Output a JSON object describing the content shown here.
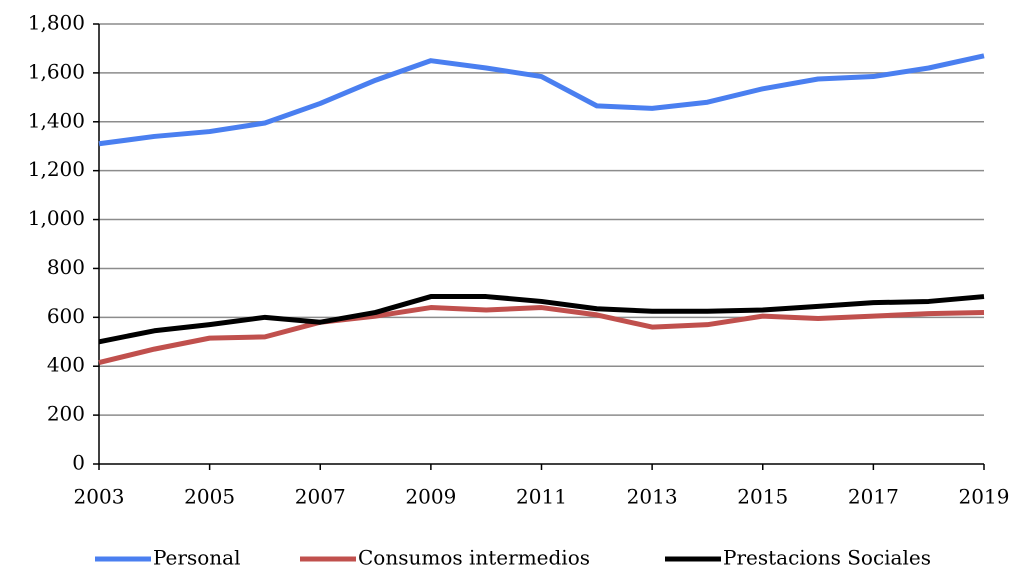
{
  "chart_data": {
    "type": "line",
    "x": [
      2003,
      2004,
      2005,
      2006,
      2007,
      2008,
      2009,
      2010,
      2011,
      2012,
      2013,
      2014,
      2015,
      2016,
      2017,
      2018,
      2019
    ],
    "xlim": [
      2003,
      2019
    ],
    "xticks": [
      2003,
      2005,
      2007,
      2009,
      2011,
      2013,
      2015,
      2017,
      2019
    ],
    "ylim": [
      0,
      1800
    ],
    "yticks": [
      0,
      200,
      400,
      600,
      800,
      {
        "value": 1000,
        "label": "1,000"
      },
      {
        "value": 1200,
        "label": "1,200"
      },
      {
        "value": 1400,
        "label": "1,400"
      },
      {
        "value": 1600,
        "label": "1,600"
      },
      {
        "value": 1800,
        "label": "1,800"
      }
    ],
    "grid": true,
    "legend": "bottom",
    "series": [
      {
        "name": "Personal",
        "color": "#4a7ff0",
        "values": [
          1310,
          1340,
          1360,
          1395,
          1475,
          1570,
          1650,
          1620,
          1585,
          1465,
          1455,
          1480,
          1535,
          1575,
          1585,
          1620,
          1670
        ]
      },
      {
        "name": "Consumos intermedios",
        "color": "#c0504d",
        "values": [
          415,
          470,
          515,
          520,
          580,
          605,
          640,
          630,
          640,
          610,
          560,
          570,
          605,
          595,
          605,
          615,
          620
        ]
      },
      {
        "name": "Prestacions Sociales",
        "color": "#000000",
        "values": [
          500,
          545,
          570,
          600,
          580,
          620,
          685,
          685,
          665,
          635,
          625,
          625,
          630,
          645,
          660,
          665,
          685
        ]
      }
    ]
  }
}
